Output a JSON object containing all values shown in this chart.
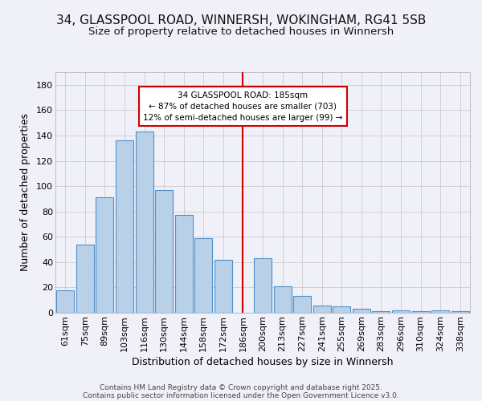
{
  "title": "34, GLASSPOOL ROAD, WINNERSH, WOKINGHAM, RG41 5SB",
  "subtitle": "Size of property relative to detached houses in Winnersh",
  "xlabel": "Distribution of detached houses by size in Winnersh",
  "ylabel": "Number of detached properties",
  "bar_color": "#b8d0e8",
  "bar_edge_color": "#5090c8",
  "background_color": "#f0f0f8",
  "plot_bg_color": "#f0f0f8",
  "grid_color": "#cccccc",
  "bins": [
    "61sqm",
    "75sqm",
    "89sqm",
    "103sqm",
    "116sqm",
    "130sqm",
    "144sqm",
    "158sqm",
    "172sqm",
    "186sqm",
    "200sqm",
    "213sqm",
    "227sqm",
    "241sqm",
    "255sqm",
    "269sqm",
    "283sqm",
    "296sqm",
    "310sqm",
    "324sqm",
    "338sqm"
  ],
  "values": [
    18,
    54,
    91,
    136,
    143,
    97,
    77,
    59,
    42,
    0,
    43,
    21,
    13,
    6,
    5,
    3,
    1,
    2,
    1,
    2,
    1
  ],
  "vline_bin": 9,
  "vline_color": "#cc0000",
  "annotation_line1": "34 GLASSPOOL ROAD: 185sqm",
  "annotation_line2": "← 87% of detached houses are smaller (703)",
  "annotation_line3": "12% of semi-detached houses are larger (99) →",
  "annotation_box_color": "#ffffff",
  "annotation_box_edge": "#cc0000",
  "ylim": [
    0,
    190
  ],
  "yticks": [
    0,
    20,
    40,
    60,
    80,
    100,
    120,
    140,
    160,
    180
  ],
  "footer_line1": "Contains HM Land Registry data © Crown copyright and database right 2025.",
  "footer_line2": "Contains public sector information licensed under the Open Government Licence v3.0.",
  "title_fontsize": 11,
  "subtitle_fontsize": 9.5,
  "axis_label_fontsize": 9,
  "tick_fontsize": 8,
  "footer_fontsize": 6.5
}
